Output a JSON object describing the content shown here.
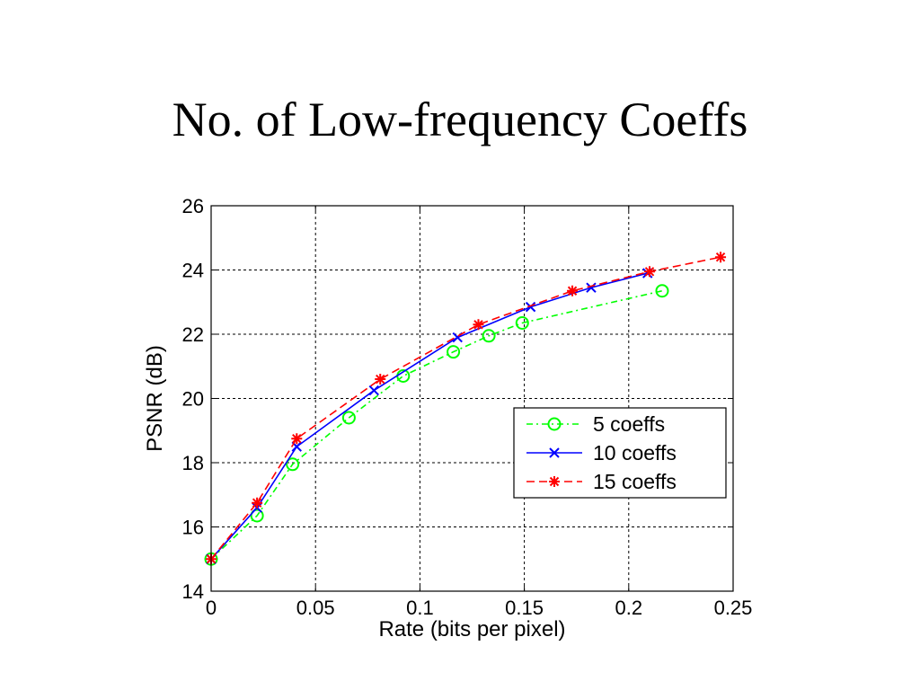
{
  "slide": {
    "title": "No. of Low-frequency Coeffs"
  },
  "chart_data": {
    "type": "line",
    "xlabel": "Rate (bits per pixel)",
    "ylabel": "PSNR (dB)",
    "xlim": [
      0,
      0.25
    ],
    "ylim": [
      14,
      26
    ],
    "xticks": [
      0,
      0.05,
      0.1,
      0.15,
      0.2,
      0.25
    ],
    "xtick_labels": [
      "0",
      "0.05",
      "0.1",
      "0.15",
      "0.2",
      "0.25"
    ],
    "yticks": [
      14,
      16,
      18,
      20,
      22,
      24,
      26
    ],
    "ytick_labels": [
      "14",
      "16",
      "18",
      "20",
      "22",
      "24",
      "26"
    ],
    "grid": true,
    "legend_position": "lower-right",
    "series": [
      {
        "name": "5 coeffs",
        "color": "#00ff00",
        "line_style": "dash-dot",
        "marker": "circle",
        "x": [
          0,
          0.022,
          0.039,
          0.066,
          0.092,
          0.116,
          0.133,
          0.149,
          0.216
        ],
        "y": [
          15.0,
          16.35,
          17.95,
          19.4,
          20.7,
          21.45,
          21.95,
          22.35,
          23.35
        ]
      },
      {
        "name": "10 coeffs",
        "color": "#0000ff",
        "line_style": "solid",
        "marker": "x",
        "x": [
          0,
          0.022,
          0.041,
          0.078,
          0.118,
          0.153,
          0.182,
          0.209
        ],
        "y": [
          15.0,
          16.6,
          18.5,
          20.25,
          21.9,
          22.85,
          23.45,
          23.9
        ]
      },
      {
        "name": "15 coeffs",
        "color": "#ff0000",
        "line_style": "dashed",
        "marker": "asterisk",
        "x": [
          0,
          0.022,
          0.041,
          0.081,
          0.128,
          0.173,
          0.21,
          0.244
        ],
        "y": [
          15.0,
          16.75,
          18.75,
          20.6,
          22.3,
          23.35,
          23.95,
          24.4
        ]
      }
    ]
  }
}
